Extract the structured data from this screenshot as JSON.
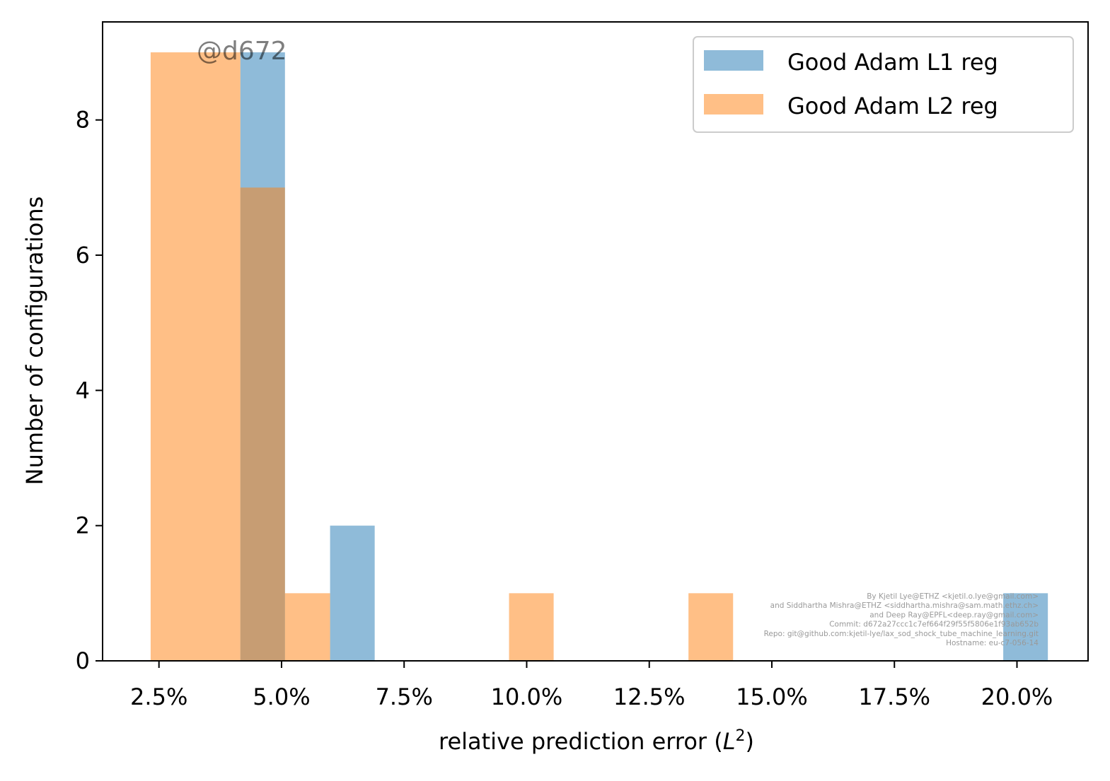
{
  "chart_data": {
    "type": "bar",
    "subtype": "histogram",
    "xlabel_text": "relative prediction error (",
    "xlabel_var": "L",
    "xlabel_sup": "2",
    "xlabel_close": ")",
    "ylabel": "Number of configurations",
    "xlim": [
      0.0135,
      0.2145
    ],
    "ylim": [
      0,
      9.45
    ],
    "x_ticks": [
      0.025,
      0.05,
      0.075,
      0.1,
      0.125,
      0.15,
      0.175,
      0.2
    ],
    "x_tick_labels": [
      "2.5%",
      "5.0%",
      "7.5%",
      "10.0%",
      "12.5%",
      "15.0%",
      "17.5%",
      "20.0%"
    ],
    "y_ticks": [
      0,
      2,
      4,
      6,
      8
    ],
    "y_tick_labels": [
      "0",
      "2",
      "4",
      "6",
      "8"
    ],
    "legend_position": "top-right",
    "alpha": 0.5,
    "series": [
      {
        "name": "Good Adam L1 reg",
        "color": "#1f77b4",
        "bins": [
          {
            "x0": 0.0416,
            "x1": 0.0507,
            "count": 9
          },
          {
            "x0": 0.0599,
            "x1": 0.069,
            "count": 2
          },
          {
            "x0": 0.1972,
            "x1": 0.2063,
            "count": 1
          }
        ]
      },
      {
        "name": "Good Adam L2 reg",
        "color": "#ff7f0e",
        "bins": [
          {
            "x0": 0.0233,
            "x1": 0.0416,
            "count": 9
          },
          {
            "x0": 0.0416,
            "x1": 0.0507,
            "count": 7
          },
          {
            "x0": 0.0507,
            "x1": 0.0599,
            "count": 1
          },
          {
            "x0": 0.0964,
            "x1": 0.1055,
            "count": 1
          },
          {
            "x0": 0.133,
            "x1": 0.1421,
            "count": 1
          }
        ]
      }
    ]
  },
  "tag": "@d672",
  "credits": [
    "By Kjetil Lye@ETHZ <kjetil.o.lye@gmail.com>",
    "and Siddhartha Mishra@ETHZ <siddhartha.mishra@sam.math.ethz.ch>",
    "and Deep Ray@EPFL<deep.ray@gmail.com>",
    "Commit: d672a27ccc1c7ef664f29f55f5806e1f93ab652b",
    "Repo: git@github.com:kjetil-lye/lax_sod_shock_tube_machine_learning.git",
    "Hostname: eu-c7-056-14"
  ]
}
